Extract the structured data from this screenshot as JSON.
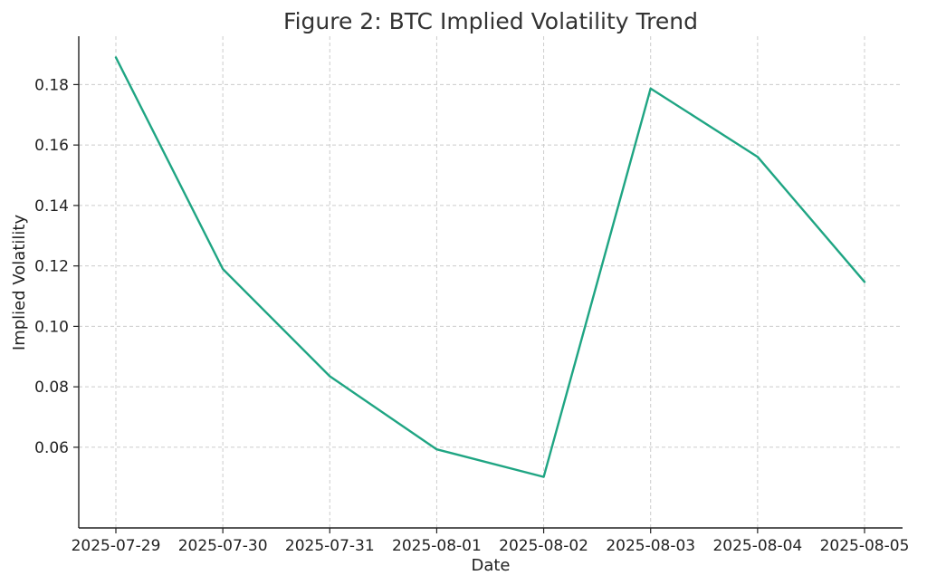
{
  "chart_data": {
    "type": "line",
    "title": "Figure 2: BTC Implied Volatility Trend",
    "xlabel": "Date",
    "ylabel": "Implied Volatility",
    "x": [
      "2025-07-29",
      "2025-07-30",
      "2025-07-31",
      "2025-08-01",
      "2025-08-02",
      "2025-08-03",
      "2025-08-04",
      "2025-08-05"
    ],
    "series": [
      {
        "values": [
          0.189,
          0.119,
          0.0835,
          0.0593,
          0.0502,
          0.1787,
          0.1561,
          0.1147
        ],
        "color": "#1fa583"
      }
    ],
    "ylim": [
      0.0333,
      0.196
    ],
    "yticks": [
      "0.06",
      "0.08",
      "0.10",
      "0.12",
      "0.14",
      "0.16",
      "0.18"
    ],
    "grid": true,
    "legend": "none"
  }
}
